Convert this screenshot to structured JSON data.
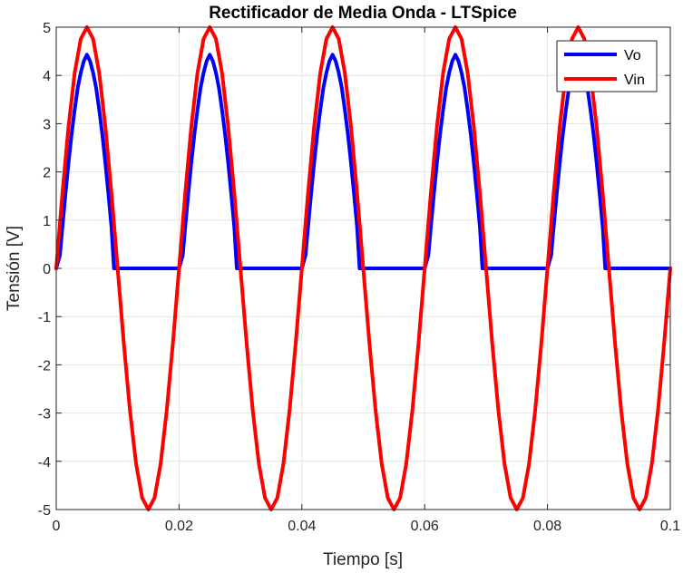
{
  "chart_data": {
    "type": "line",
    "title": "Rectificador de Media Onda - LTSpice",
    "xlabel": "Tiempo [s]",
    "ylabel": "Tensión [V]",
    "xlim": [
      0,
      0.1
    ],
    "ylim": [
      -5,
      5
    ],
    "grid": true,
    "legend_placement": "top-right",
    "x_ticks": [
      "0",
      "0.02",
      "0.04",
      "0.06",
      "0.08",
      "0.1"
    ],
    "y_ticks": [
      "5",
      "4",
      "3",
      "2",
      "1",
      "0",
      "-1",
      "-2",
      "-3",
      "-4",
      "-5"
    ],
    "series": [
      {
        "name": "Vo",
        "color": "#0000ff",
        "x": [
          0,
          0.0006,
          0.001,
          0.0015,
          0.002,
          0.0025,
          0.003,
          0.0035,
          0.004,
          0.0045,
          0.005,
          0.0055,
          0.006,
          0.0065,
          0.007,
          0.0075,
          0.008,
          0.0085,
          0.009,
          0.0094,
          0.02,
          0.0206,
          0.021,
          0.0215,
          0.022,
          0.0225,
          0.023,
          0.0235,
          0.024,
          0.0245,
          0.025,
          0.0255,
          0.026,
          0.0265,
          0.027,
          0.0275,
          0.028,
          0.0285,
          0.029,
          0.0294,
          0.04,
          0.0406,
          0.041,
          0.0415,
          0.042,
          0.0425,
          0.043,
          0.0435,
          0.044,
          0.0445,
          0.045,
          0.0455,
          0.046,
          0.0465,
          0.047,
          0.0475,
          0.048,
          0.0485,
          0.049,
          0.0494,
          0.06,
          0.0606,
          0.061,
          0.0615,
          0.062,
          0.0625,
          0.063,
          0.0635,
          0.064,
          0.0645,
          0.065,
          0.0655,
          0.066,
          0.0665,
          0.067,
          0.0675,
          0.068,
          0.0685,
          0.069,
          0.0694,
          0.08,
          0.0806,
          0.081,
          0.0815,
          0.082,
          0.0825,
          0.083,
          0.0835,
          0.084,
          0.0845,
          0.085,
          0.0855,
          0.086,
          0.0865,
          0.087,
          0.0875,
          0.088,
          0.0885,
          0.089,
          0.0894,
          0.1
        ],
        "y": [
          0,
          0.27,
          0.85,
          1.54,
          2.19,
          2.78,
          3.29,
          3.74,
          4.06,
          4.3,
          4.43,
          4.3,
          4.06,
          3.74,
          3.29,
          2.78,
          2.19,
          1.54,
          0.85,
          0,
          0,
          0.27,
          0.85,
          1.54,
          2.19,
          2.78,
          3.29,
          3.74,
          4.06,
          4.3,
          4.43,
          4.3,
          4.06,
          3.74,
          3.29,
          2.78,
          2.19,
          1.54,
          0.85,
          0,
          0,
          0.27,
          0.85,
          1.54,
          2.19,
          2.78,
          3.29,
          3.74,
          4.06,
          4.3,
          4.43,
          4.3,
          4.06,
          3.74,
          3.29,
          2.78,
          2.19,
          1.54,
          0.85,
          0,
          0,
          0.27,
          0.85,
          1.54,
          2.19,
          2.78,
          3.29,
          3.74,
          4.06,
          4.3,
          4.43,
          4.3,
          4.06,
          3.74,
          3.29,
          2.78,
          2.19,
          1.54,
          0.85,
          0,
          0,
          0.27,
          0.85,
          1.54,
          2.19,
          2.78,
          3.29,
          3.74,
          4.06,
          4.3,
          4.43,
          4.3,
          4.06,
          3.74,
          3.29,
          2.78,
          2.19,
          1.54,
          0.85,
          0,
          0
        ]
      },
      {
        "name": "Vin",
        "color": "#ff0000",
        "x": [
          0,
          0.001,
          0.002,
          0.003,
          0.004,
          0.005,
          0.006,
          0.007,
          0.008,
          0.009,
          0.01,
          0.011,
          0.012,
          0.013,
          0.014,
          0.015,
          0.016,
          0.017,
          0.018,
          0.019,
          0.02,
          0.021,
          0.022,
          0.023,
          0.024,
          0.025,
          0.026,
          0.027,
          0.028,
          0.029,
          0.03,
          0.031,
          0.032,
          0.033,
          0.034,
          0.035,
          0.036,
          0.037,
          0.038,
          0.039,
          0.04,
          0.041,
          0.042,
          0.043,
          0.044,
          0.045,
          0.046,
          0.047,
          0.048,
          0.049,
          0.05,
          0.051,
          0.052,
          0.053,
          0.054,
          0.055,
          0.056,
          0.057,
          0.058,
          0.059,
          0.06,
          0.061,
          0.062,
          0.063,
          0.064,
          0.065,
          0.066,
          0.067,
          0.068,
          0.069,
          0.07,
          0.071,
          0.072,
          0.073,
          0.074,
          0.075,
          0.076,
          0.077,
          0.078,
          0.079,
          0.08,
          0.081,
          0.082,
          0.083,
          0.084,
          0.085,
          0.086,
          0.087,
          0.088,
          0.089,
          0.09,
          0.091,
          0.092,
          0.093,
          0.094,
          0.095,
          0.096,
          0.097,
          0.098,
          0.099,
          0.1
        ],
        "y": [
          0,
          1.55,
          2.94,
          4.05,
          4.76,
          5.0,
          4.76,
          4.05,
          2.94,
          1.55,
          0,
          -1.55,
          -2.94,
          -4.05,
          -4.76,
          -5.0,
          -4.76,
          -4.05,
          -2.94,
          -1.55,
          0,
          1.55,
          2.94,
          4.05,
          4.76,
          5.0,
          4.76,
          4.05,
          2.94,
          1.55,
          0,
          -1.55,
          -2.94,
          -4.05,
          -4.76,
          -5.0,
          -4.76,
          -4.05,
          -2.94,
          -1.55,
          0,
          1.55,
          2.94,
          4.05,
          4.76,
          5.0,
          4.76,
          4.05,
          2.94,
          1.55,
          0,
          -1.55,
          -2.94,
          -4.05,
          -4.76,
          -5.0,
          -4.76,
          -4.05,
          -2.94,
          -1.55,
          0,
          1.55,
          2.94,
          4.05,
          4.76,
          5.0,
          4.76,
          4.05,
          2.94,
          1.55,
          0,
          -1.55,
          -2.94,
          -4.05,
          -4.76,
          -5.0,
          -4.76,
          -4.05,
          -2.94,
          -1.55,
          0,
          1.55,
          2.94,
          4.05,
          4.76,
          5.0,
          4.76,
          4.05,
          2.94,
          1.55,
          0,
          -1.55,
          -2.94,
          -4.05,
          -4.76,
          -5.0,
          -4.76,
          -4.05,
          -2.94,
          -1.55,
          0
        ]
      }
    ]
  }
}
